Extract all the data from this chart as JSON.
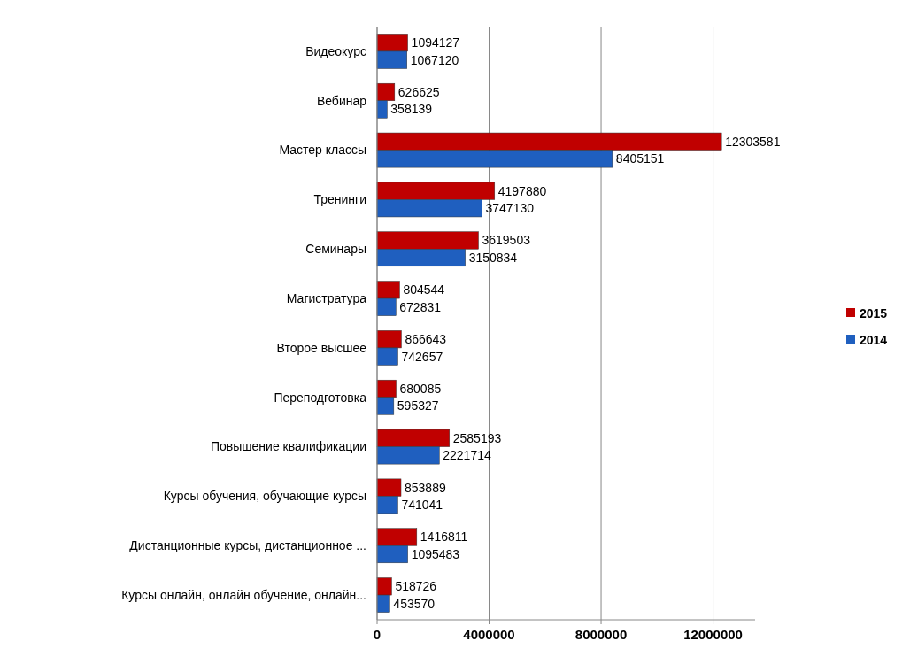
{
  "chart_data": {
    "type": "bar",
    "orientation": "horizontal",
    "categories": [
      "Видеокурс",
      "Вебинар",
      "Мастер классы",
      "Тренинги",
      "Семинары",
      "Магистратура",
      "Второе высшее",
      "Переподготовка",
      "Повышение квалификации",
      "Курсы обучения, обучающие курсы",
      "Дистанционные курсы, дистанционное ...",
      "Курсы онлайн, онлайн обучение, онлайн..."
    ],
    "series": [
      {
        "name": "2015",
        "color": "#c00000",
        "values": [
          1094127,
          626625,
          12303581,
          4197880,
          3619503,
          804544,
          866643,
          680085,
          2585193,
          853889,
          1416811,
          518726
        ]
      },
      {
        "name": "2014",
        "color": "#1f5fbf",
        "values": [
          1067120,
          358139,
          8405151,
          3747130,
          3150834,
          672831,
          742657,
          595327,
          2221714,
          741041,
          1095483,
          453570
        ]
      }
    ],
    "xlim": [
      0,
      13500000
    ],
    "xticks": [
      0,
      4000000,
      8000000,
      12000000
    ],
    "grid": "x",
    "legend": "right",
    "data_labels": true
  }
}
